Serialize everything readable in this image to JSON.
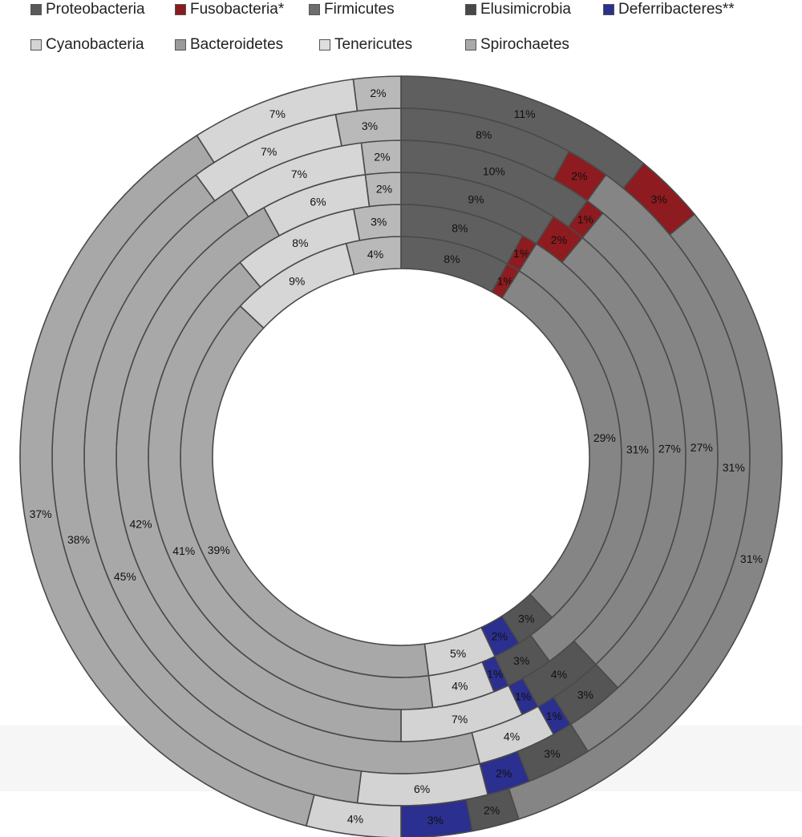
{
  "legend": [
    {
      "name": "Proteobacteria",
      "color": "#5a5a5a"
    },
    {
      "name": "Fusobacteria*",
      "color": "#8b1a1e"
    },
    {
      "name": "Firmicutes",
      "color": "#6e6e6e"
    },
    {
      "name": "Elusimicrobia",
      "color": "#484848"
    },
    {
      "name": "Deferribacteres**",
      "color": "#2b2f8f"
    },
    {
      "name": "Cyanobacteria",
      "color": "#d4d4d4"
    },
    {
      "name": "Bacteroidetes",
      "color": "#9a9a9a"
    },
    {
      "name": "Tenericutes",
      "color": "#dedede"
    },
    {
      "name": "Spirochaetes",
      "color": "#a9a9a9"
    }
  ],
  "chart_data": {
    "type": "donut",
    "rings_inner_to_outer": [
      {
        "Proteobacteria": 8,
        "Fusobacteria*": 1,
        "Firmicutes": 29,
        "Elusimicrobia": 3,
        "Deferribacteres**": 2,
        "Cyanobacteria": 5,
        "Spirochaetes": 39,
        "Tenericutes": 9,
        "Bacteroidetes": 4
      },
      {
        "Proteobacteria": 8,
        "Fusobacteria*": 1,
        "Firmicutes": 31,
        "Elusimicrobia": 3,
        "Deferribacteres**": 1,
        "Cyanobacteria": 4,
        "Spirochaetes": 41,
        "Tenericutes": 8,
        "Bacteroidetes": 3
      },
      {
        "Proteobacteria": 9,
        "Fusobacteria*": 2,
        "Firmicutes": 27,
        "Elusimicrobia": 4,
        "Deferribacteres**": 1,
        "Cyanobacteria": 7,
        "Spirochaetes": 42,
        "Tenericutes": 6,
        "Bacteroidetes": 2
      },
      {
        "Proteobacteria": 10,
        "Fusobacteria*": 1,
        "Firmicutes": 27,
        "Elusimicrobia": 3,
        "Deferribacteres**": 1,
        "Cyanobacteria": 4,
        "Spirochaetes": 45,
        "Tenericutes": 7,
        "Bacteroidetes": 2
      },
      {
        "Proteobacteria": 8,
        "Fusobacteria*": 2,
        "Firmicutes": 31,
        "Elusimicrobia": 3,
        "Deferribacteres**": 2,
        "Cyanobacteria": 6,
        "Spirochaetes": 38,
        "Tenericutes": 7,
        "Bacteroidetes": 3
      },
      {
        "Proteobacteria": 11,
        "Fusobacteria*": 3,
        "Firmicutes": 31,
        "Elusimicrobia": 2,
        "Deferribacteres**": 3,
        "Cyanobacteria": 4,
        "Spirochaetes": 37,
        "Tenericutes": 7,
        "Bacteroidetes": 2
      }
    ],
    "segment_order": [
      "Proteobacteria",
      "Fusobacteria*",
      "Firmicutes",
      "Elusimicrobia",
      "Deferribacteres**",
      "Cyanobacteria",
      "Spirochaetes",
      "Tenericutes",
      "Bacteroidetes"
    ],
    "segment_colors": {
      "Proteobacteria": "#5f5f5f",
      "Fusobacteria*": "#8e1b1f",
      "Firmicutes": "#858585",
      "Elusimicrobia": "#555555",
      "Deferribacteres**": "#2b2f8f",
      "Cyanobacteria": "#d3d3d3",
      "Spirochaetes": "#a8a8a8",
      "Tenericutes": "#d6d6d6",
      "Bacteroidetes": "#b9b9b9"
    },
    "label_suffix": "%",
    "legend_position": "top"
  }
}
